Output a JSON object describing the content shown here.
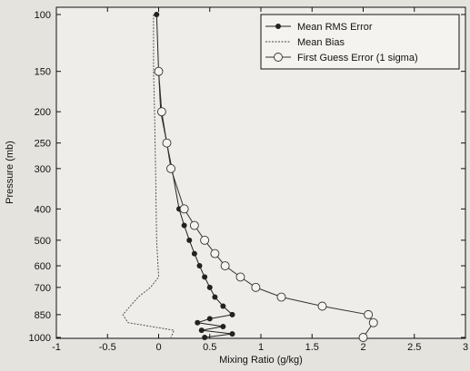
{
  "chart_data": {
    "type": "line",
    "title": "",
    "xlabel": "Mixing Ratio (g/kg)",
    "ylabel": "Pressure (mb)",
    "xlim": [
      -1,
      3
    ],
    "ylim": [
      100,
      1000
    ],
    "y_inverted": true,
    "x_ticks": [
      "-1",
      "-0.5",
      "0",
      "0.5",
      "1",
      "1.5",
      "2",
      "2.5",
      "3"
    ],
    "y_ticks": [
      "100",
      "150",
      "200",
      "250",
      "300",
      "400",
      "500",
      "600",
      "700",
      "850",
      "1000"
    ],
    "grid": false,
    "legend_position": "top-right",
    "series": [
      {
        "name": "Mean RMS Error",
        "marker": "filled-circle",
        "color": "#222222",
        "points": [
          {
            "x": -0.02,
            "y": 100
          },
          {
            "x": 0.0,
            "y": 150
          },
          {
            "x": 0.02,
            "y": 200
          },
          {
            "x": 0.08,
            "y": 250
          },
          {
            "x": 0.13,
            "y": 300
          },
          {
            "x": 0.2,
            "y": 400
          },
          {
            "x": 0.25,
            "y": 450
          },
          {
            "x": 0.3,
            "y": 500
          },
          {
            "x": 0.35,
            "y": 550
          },
          {
            "x": 0.4,
            "y": 600
          },
          {
            "x": 0.45,
            "y": 650
          },
          {
            "x": 0.5,
            "y": 700
          },
          {
            "x": 0.55,
            "y": 750
          },
          {
            "x": 0.63,
            "y": 800
          },
          {
            "x": 0.72,
            "y": 850
          },
          {
            "x": 0.5,
            "y": 875
          },
          {
            "x": 0.38,
            "y": 900
          },
          {
            "x": 0.63,
            "y": 925
          },
          {
            "x": 0.42,
            "y": 950
          },
          {
            "x": 0.72,
            "y": 975
          },
          {
            "x": 0.45,
            "y": 1000
          }
        ]
      },
      {
        "name": "Mean Bias",
        "marker": "none",
        "color": "#444444",
        "points": [
          {
            "x": -0.05,
            "y": 100
          },
          {
            "x": -0.05,
            "y": 150
          },
          {
            "x": -0.04,
            "y": 200
          },
          {
            "x": -0.03,
            "y": 300
          },
          {
            "x": -0.02,
            "y": 500
          },
          {
            "x": 0.0,
            "y": 650
          },
          {
            "x": -0.08,
            "y": 700
          },
          {
            "x": -0.2,
            "y": 750
          },
          {
            "x": -0.35,
            "y": 850
          },
          {
            "x": -0.3,
            "y": 900
          },
          {
            "x": 0.15,
            "y": 950
          },
          {
            "x": 0.12,
            "y": 1000
          }
        ]
      },
      {
        "name": "First Guess Error (1 sigma)",
        "marker": "open-circle",
        "color": "#333333",
        "points": [
          {
            "x": 0.0,
            "y": 150
          },
          {
            "x": 0.03,
            "y": 200
          },
          {
            "x": 0.08,
            "y": 250
          },
          {
            "x": 0.12,
            "y": 300
          },
          {
            "x": 0.25,
            "y": 400
          },
          {
            "x": 0.35,
            "y": 450
          },
          {
            "x": 0.45,
            "y": 500
          },
          {
            "x": 0.55,
            "y": 550
          },
          {
            "x": 0.65,
            "y": 600
          },
          {
            "x": 0.8,
            "y": 650
          },
          {
            "x": 0.95,
            "y": 700
          },
          {
            "x": 1.2,
            "y": 750
          },
          {
            "x": 1.6,
            "y": 800
          },
          {
            "x": 2.05,
            "y": 850
          },
          {
            "x": 2.1,
            "y": 900
          },
          {
            "x": 2.0,
            "y": 1000
          }
        ]
      }
    ]
  }
}
